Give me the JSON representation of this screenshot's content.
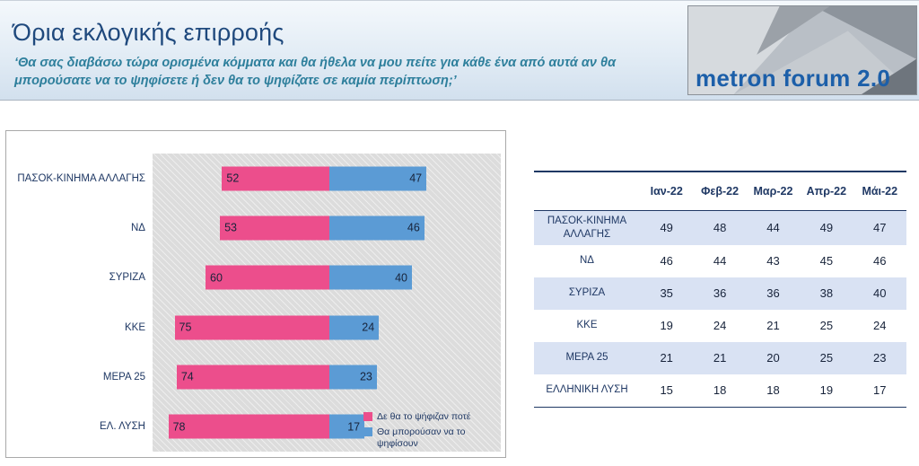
{
  "header": {
    "title": "Όρια εκλογικής επιρροής",
    "subtitle": "‘Θα σας διαβάσω τώρα ορισμένα κόμματα και θα ήθελα να μου πείτε για κάθε ένα από αυτά αν θα μπορούσατε να το ψηφίσετε ή δεν θα το ψηφίζατε σε καμία περίπτωση;’",
    "logo_text": "metron forum 2.0"
  },
  "colors": {
    "pink": "#EC4E8C",
    "blue": "#5B9BD5",
    "navy": "#1F3864",
    "row_shade": "#D9E2F3"
  },
  "chart_data": {
    "type": "bar",
    "orientation": "horizontal-diverging",
    "title": "Όρια εκλογικής επιρροής",
    "categories": [
      "ΠΑΣΟΚ-ΚΙΝΗΜΑ ΑΛΛΑΓΗΣ",
      "ΝΔ",
      "ΣΥΡΙΖΑ",
      "ΚΚΕ",
      "ΜΕΡΑ 25",
      "ΕΛ. ΛΥΣΗ"
    ],
    "series": [
      {
        "name": "Δε θα το ψήφιζαν ποτέ",
        "color": "#EC4E8C",
        "direction": "left",
        "values": [
          52,
          53,
          60,
          75,
          74,
          78
        ]
      },
      {
        "name": "Θα μπορούσαν να το ψηφίσουν",
        "color": "#5B9BD5",
        "direction": "right",
        "values": [
          47,
          46,
          40,
          24,
          23,
          17
        ]
      }
    ],
    "value_axis_max": 80,
    "legend_position": "bottom-right",
    "grid": false
  },
  "table": {
    "columns": [
      "Ιαν-22",
      "Φεβ-22",
      "Μαρ-22",
      "Απρ-22",
      "Μάι-22"
    ],
    "rows": [
      {
        "label": "ΠΑΣΟΚ-ΚΙΝΗΜΑ ΑΛΛΑΓΗΣ",
        "values": [
          49,
          48,
          44,
          49,
          47
        ]
      },
      {
        "label": "ΝΔ",
        "values": [
          46,
          44,
          43,
          45,
          46
        ]
      },
      {
        "label": "ΣΥΡΙΖΑ",
        "values": [
          35,
          36,
          36,
          38,
          40
        ]
      },
      {
        "label": "ΚΚΕ",
        "values": [
          19,
          24,
          21,
          25,
          24
        ]
      },
      {
        "label": "ΜΕΡΑ 25",
        "values": [
          21,
          21,
          20,
          25,
          23
        ]
      },
      {
        "label": "ΕΛΛΗΝΙΚΗ ΛΥΣΗ",
        "values": [
          15,
          18,
          18,
          19,
          17
        ]
      }
    ]
  }
}
